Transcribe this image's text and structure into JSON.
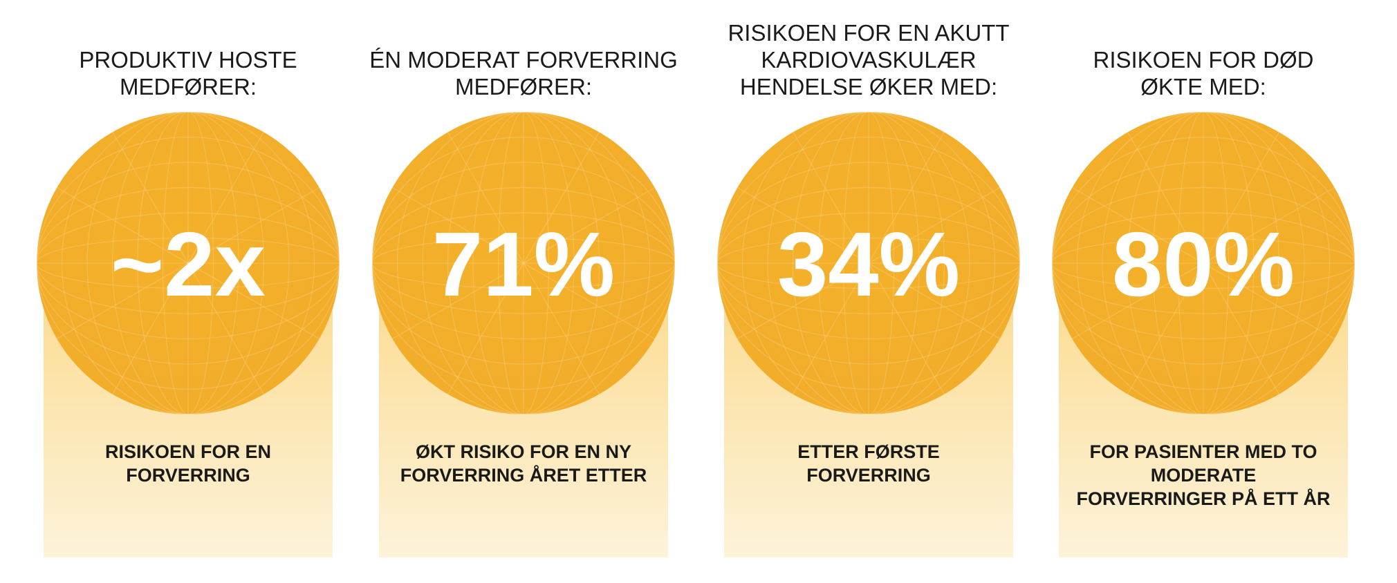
{
  "cards": [
    {
      "header": [
        "PRODUKTIV HOSTE",
        "MEDFØRER:"
      ],
      "value": "~2x",
      "caption": [
        "RISIKOEN FOR EN",
        "FORVERRING"
      ]
    },
    {
      "header": [
        "ÉN MODERAT FORVERRING",
        "MEDFØRER:"
      ],
      "value": "71%",
      "caption": [
        "ØKT RISIKO FOR EN NY",
        "FORVERRING ÅRET ETTER"
      ]
    },
    {
      "header": [
        "RISIKOEN FOR EN AKUTT",
        "KARDIOVASKULÆR",
        "HENDELSE ØKER MED:"
      ],
      "value": "34%",
      "caption": [
        "ETTER FØRSTE",
        "FORVERRING"
      ]
    },
    {
      "header": [
        "RISIKOEN FOR DØD",
        "ØKTE MED:"
      ],
      "value": "80%",
      "caption": [
        "FOR PASIENTER MED TO",
        "MODERATE",
        "FORVERRINGER PÅ ETT ÅR"
      ]
    }
  ]
}
